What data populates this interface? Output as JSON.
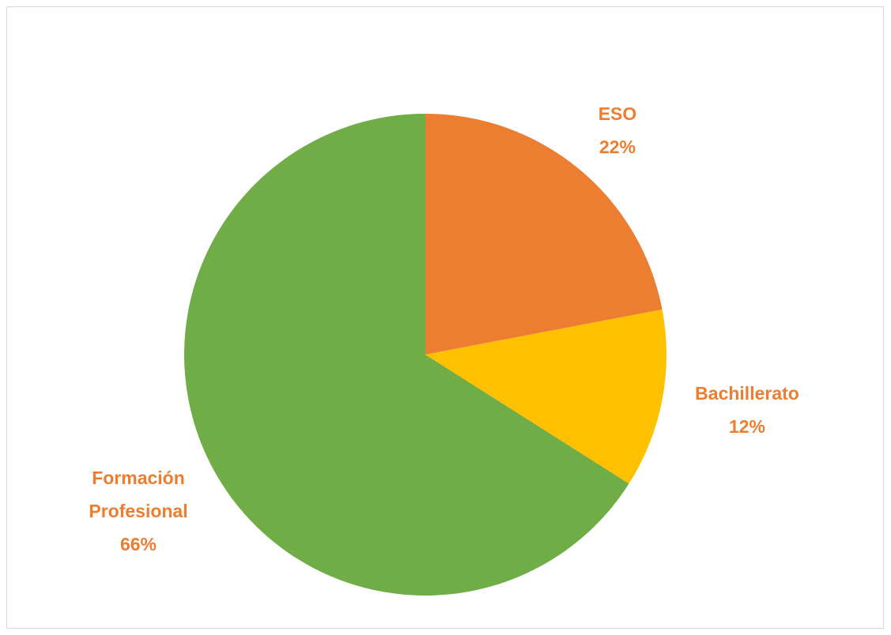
{
  "chart_data": {
    "type": "pie",
    "title": "",
    "slices": [
      {
        "label": "ESO",
        "value": 22,
        "display": "22%",
        "color": "#ED7D31"
      },
      {
        "label": "Bachillerato",
        "value": 12,
        "display": "12%",
        "color": "#FFC000"
      },
      {
        "label": "Formación Profesional",
        "label_lines": [
          "Formación",
          "Profesional"
        ],
        "value": 66,
        "display": "66%",
        "color": "#70AD47"
      }
    ],
    "start_angle": "12 o'clock",
    "direction": "clockwise",
    "legend": "none",
    "data_label_color": "#ED7D31",
    "border_color": "#D9D9D9"
  }
}
